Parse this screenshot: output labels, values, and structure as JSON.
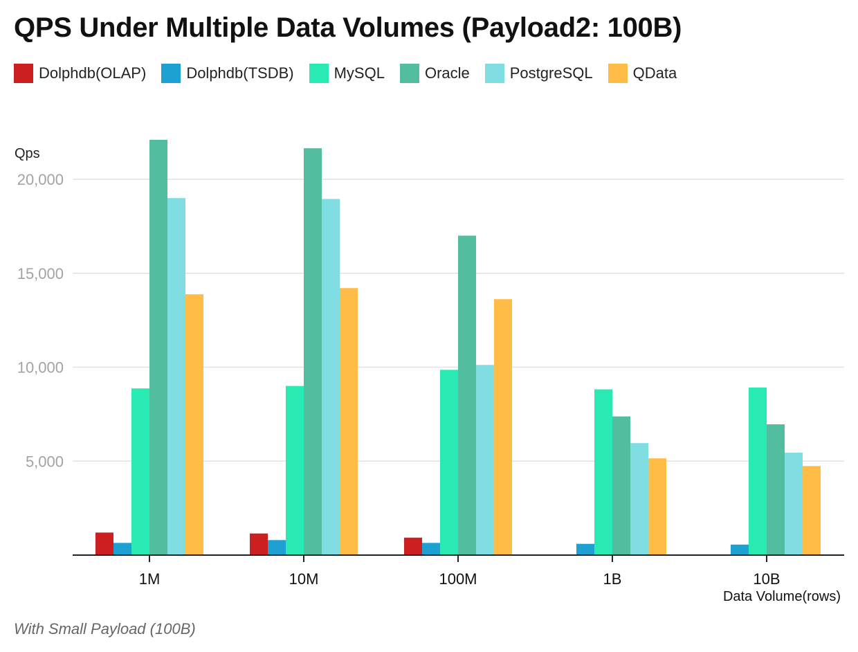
{
  "chart_data": {
    "type": "bar",
    "title": "QPS Under Multiple Data Volumes (Payload2: 100B)",
    "ylabel": "Qps",
    "xlabel": "Data Volume(rows)",
    "categories": [
      "1M",
      "10M",
      "100M",
      "1B",
      "10B"
    ],
    "ylim": [
      0,
      22000
    ],
    "yticks": [
      5000,
      10000,
      15000,
      20000
    ],
    "ytick_labels": [
      "5,000",
      "10,000",
      "15,000",
      "20,000"
    ],
    "grid": true,
    "legend_position": "top-left",
    "series": [
      {
        "name": "Dolphdb(OLAP)",
        "color": "#cc1f1f",
        "values": [
          1200,
          1150,
          930,
          null,
          null
        ]
      },
      {
        "name": "Dolphdb(TSDB)",
        "color": "#1da1d2",
        "values": [
          650,
          800,
          650,
          600,
          560
        ]
      },
      {
        "name": "MySQL",
        "color": "#2aeab4",
        "values": [
          8870,
          9000,
          9860,
          8820,
          8920
        ]
      },
      {
        "name": "Oracle",
        "color": "#53bd9f",
        "values": [
          22100,
          21650,
          17000,
          7380,
          6960
        ]
      },
      {
        "name": "PostgreSQL",
        "color": "#80dee2",
        "values": [
          19000,
          18950,
          10120,
          5960,
          5450
        ]
      },
      {
        "name": "QData",
        "color": "#ffbd47",
        "values": [
          13880,
          14210,
          13620,
          5150,
          4740
        ]
      }
    ],
    "caption": "With Small Payload (100B)"
  }
}
